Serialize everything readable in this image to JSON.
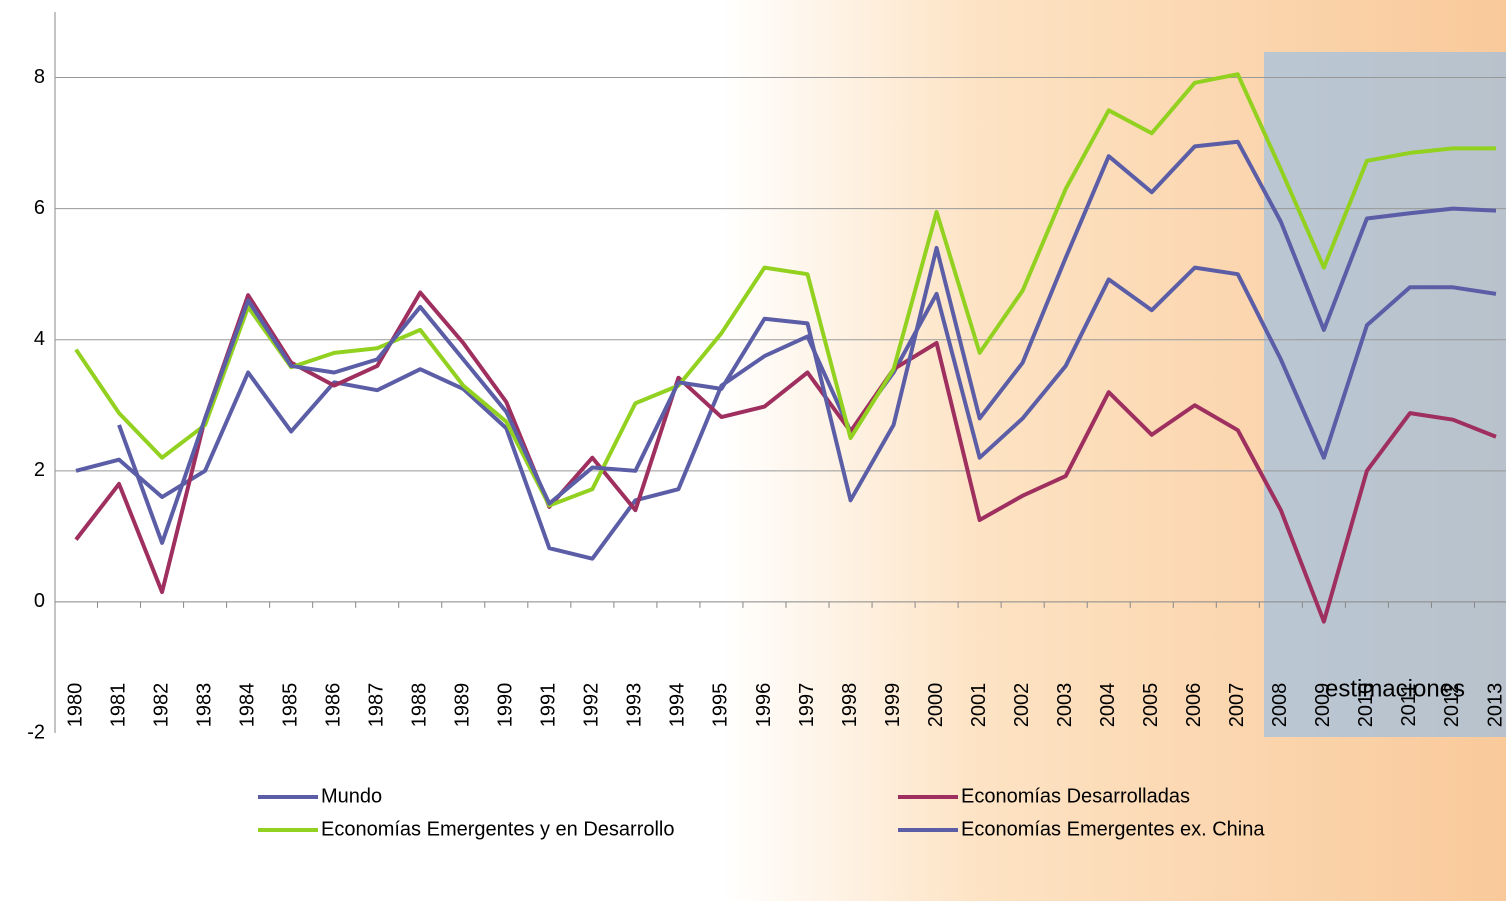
{
  "chart_data": {
    "type": "line",
    "categories": [
      "1980",
      "1981",
      "1982",
      "1983",
      "1984",
      "1985",
      "1986",
      "1987",
      "1988",
      "1989",
      "1990",
      "1991",
      "1992",
      "1993",
      "1994",
      "1995",
      "1996",
      "1997",
      "1998",
      "1999",
      "2000",
      "2001",
      "2002",
      "2003",
      "2004",
      "2005",
      "2006",
      "2007",
      "2008",
      "2009",
      "2010",
      "2011",
      "2012",
      "2013"
    ],
    "series": [
      {
        "name": "Mundo",
        "color": "#5b5ea6",
        "values": [
          2.0,
          2.17,
          1.6,
          2.0,
          3.5,
          2.6,
          3.35,
          3.23,
          3.55,
          3.25,
          2.65,
          0.82,
          0.66,
          1.55,
          1.72,
          3.3,
          3.75,
          4.05,
          2.6,
          3.5,
          4.7,
          2.2,
          2.8,
          3.6,
          4.92,
          4.45,
          5.1,
          5.0,
          3.7,
          2.2,
          4.22,
          4.8,
          4.8,
          4.7
        ]
      },
      {
        "name": "Economías Desarrolladas",
        "color": "#9e2f5e",
        "values": [
          0.95,
          1.8,
          0.15,
          2.8,
          4.68,
          3.65,
          3.3,
          3.6,
          4.72,
          3.95,
          3.05,
          1.45,
          2.2,
          1.4,
          3.42,
          2.82,
          2.98,
          3.5,
          2.6,
          3.55,
          3.95,
          1.25,
          1.62,
          1.92,
          3.2,
          2.55,
          3.0,
          2.62,
          1.4,
          -0.3,
          2.0,
          2.88,
          2.78,
          2.52
        ]
      },
      {
        "name": "Economías Emergentes y en Desarrollo",
        "color": "#92d120",
        "values": [
          3.85,
          2.88,
          2.2,
          2.7,
          4.5,
          3.58,
          3.8,
          3.87,
          4.15,
          3.3,
          2.75,
          1.47,
          1.72,
          3.03,
          3.3,
          4.1,
          5.1,
          5.0,
          2.5,
          3.55,
          5.95,
          3.8,
          4.75,
          6.3,
          7.5,
          7.15,
          7.92,
          8.05,
          6.6,
          5.1,
          6.73,
          6.85,
          6.92,
          6.92
        ]
      },
      {
        "name": "Economías Emergentes ex. China",
        "color": "#5b5ea6",
        "values": [
          null,
          2.7,
          0.9,
          2.8,
          4.6,
          3.6,
          3.5,
          3.7,
          4.5,
          3.7,
          2.9,
          1.5,
          2.05,
          2.0,
          3.35,
          3.25,
          4.32,
          4.25,
          1.55,
          2.7,
          5.4,
          2.8,
          3.65,
          5.25,
          6.8,
          6.25,
          6.95,
          7.02,
          5.8,
          4.15,
          5.85,
          5.93,
          6.0,
          5.97
        ]
      }
    ],
    "ylim": [
      -2,
      9
    ],
    "yticks": [
      -2,
      0,
      2,
      4,
      6,
      8
    ],
    "grid": true,
    "annotations": [
      "estimaciones"
    ]
  }
}
